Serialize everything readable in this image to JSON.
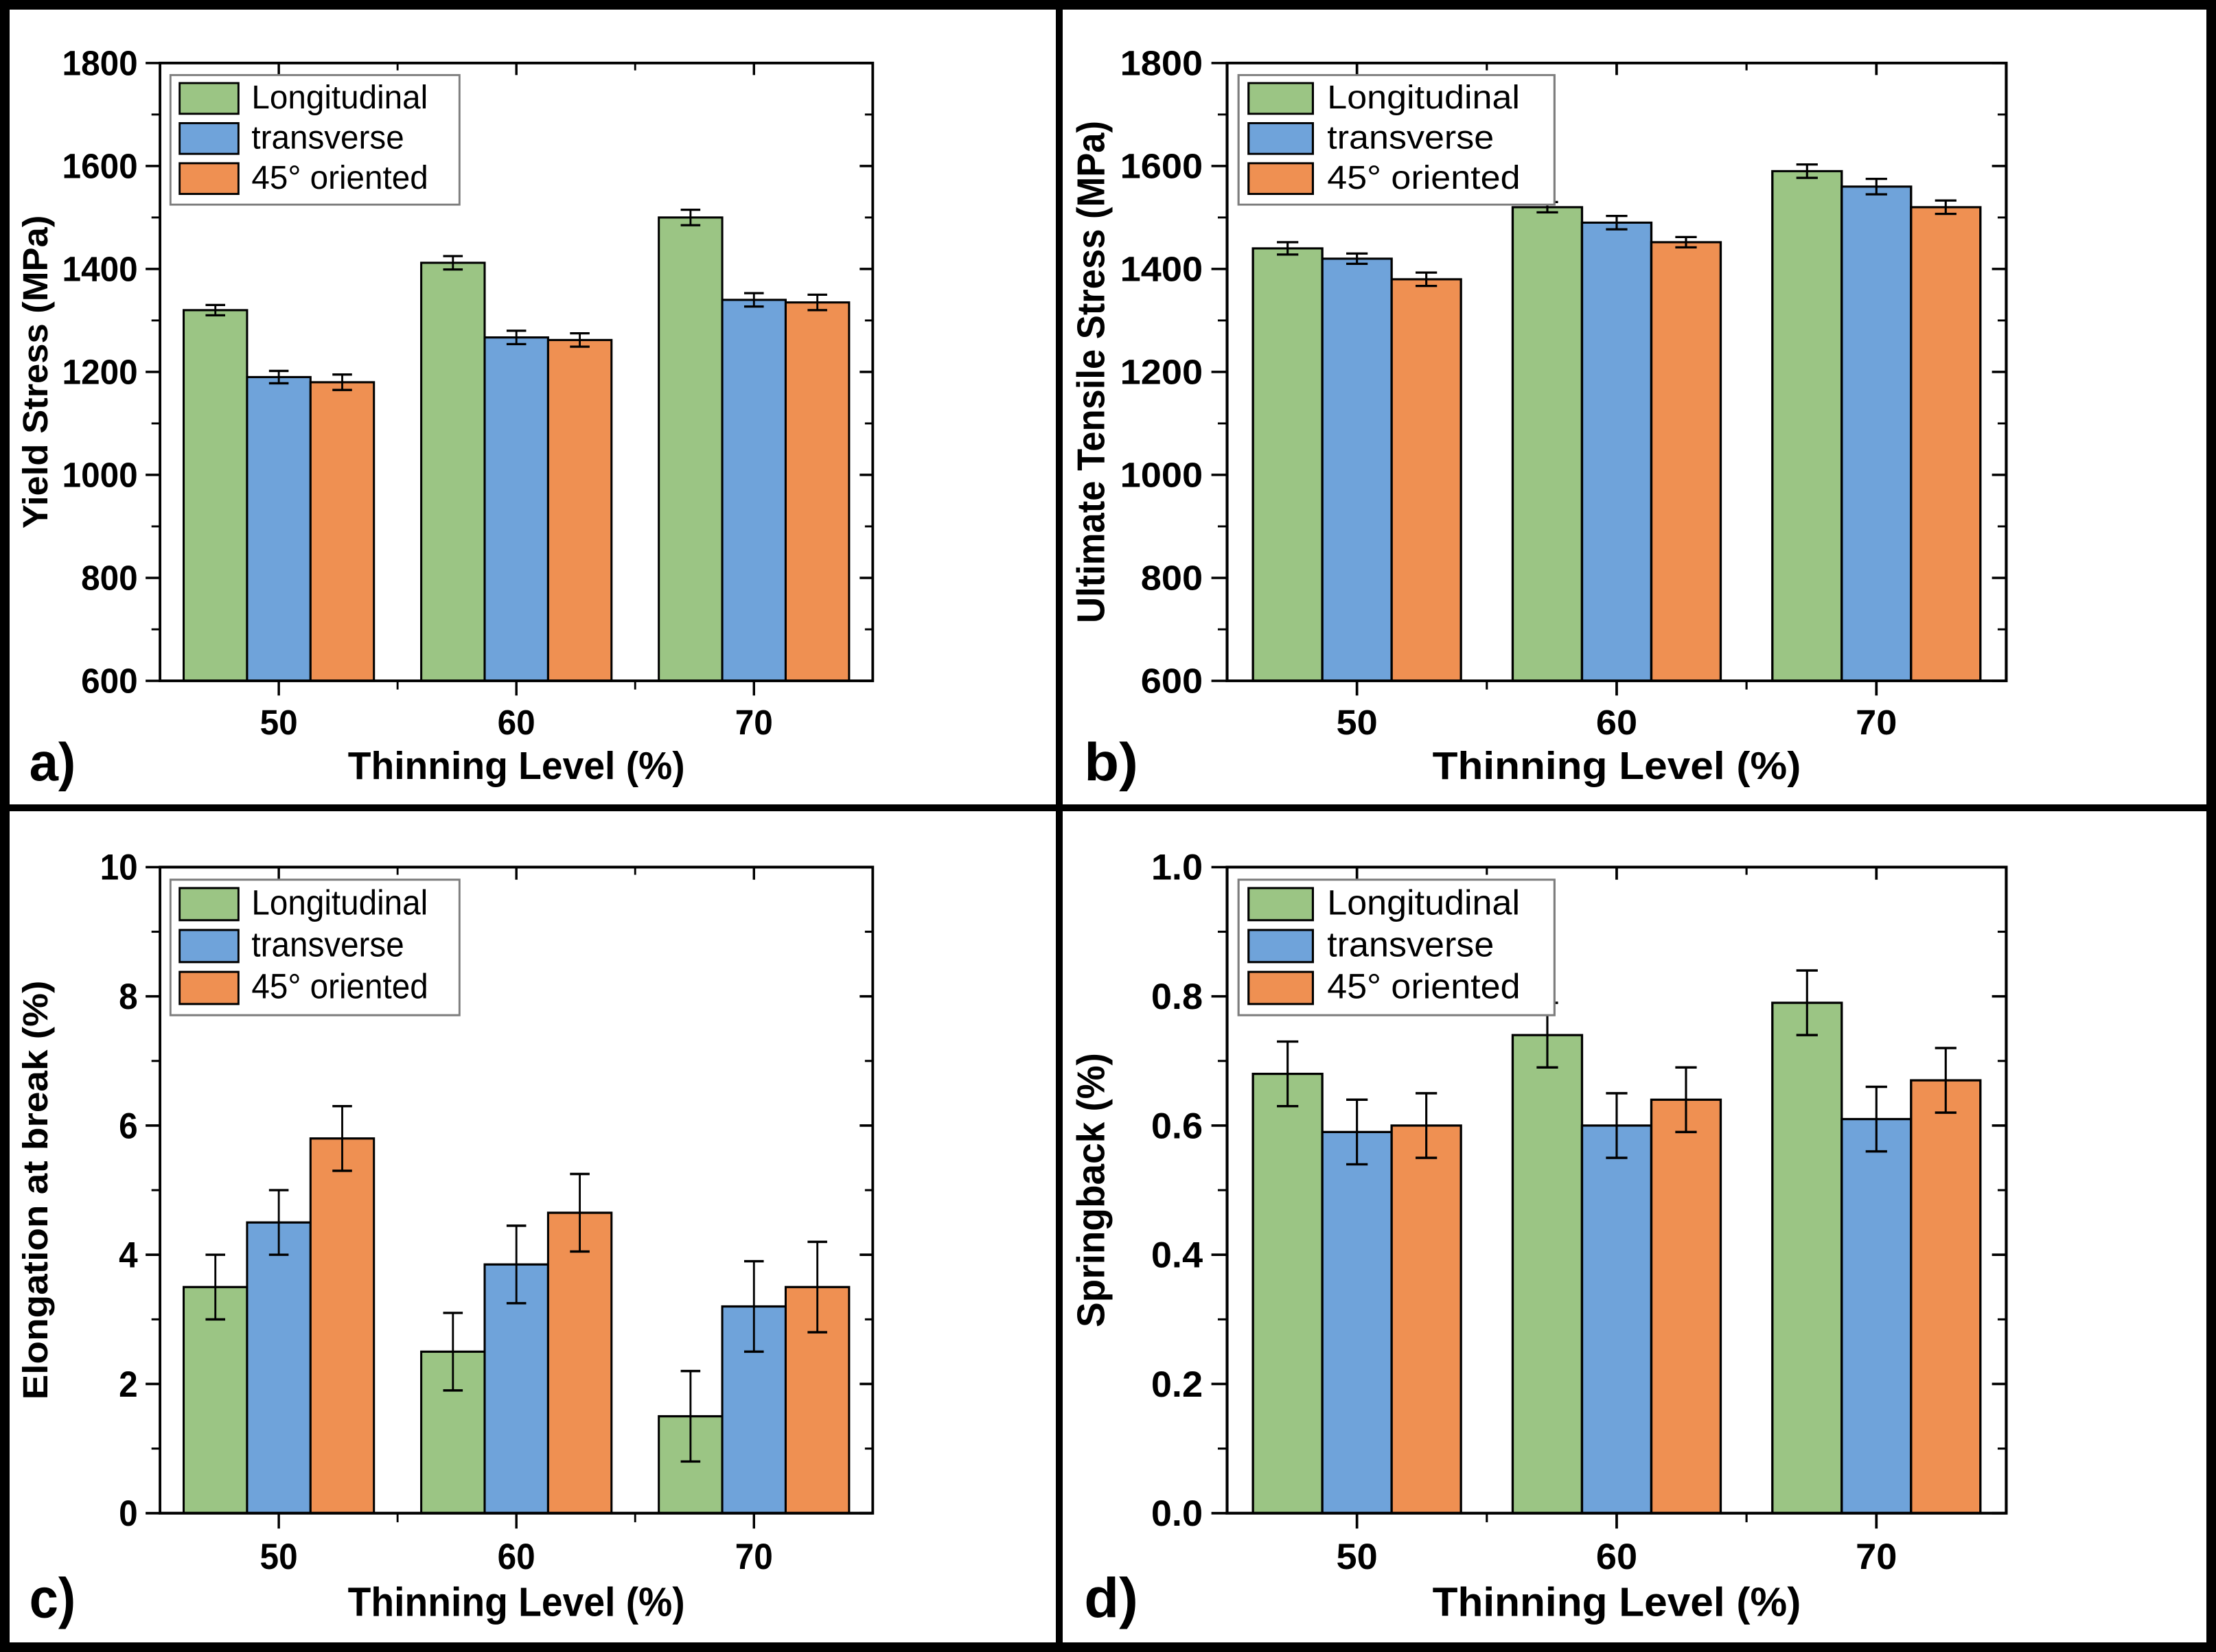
{
  "figure": {
    "background": "#ffffff",
    "border_color": "#000000",
    "series_colors": {
      "longitudinal": "#9bc584",
      "transverse": "#6fa3da",
      "oriented45": "#ef9052"
    },
    "panel_labels": [
      "a)",
      "b)",
      "c)",
      "d)"
    ]
  },
  "chart_data": [
    {
      "type": "bar",
      "panel_label": "a)",
      "title": "",
      "xlabel": "Thinning Level (%)",
      "ylabel": "Yield Stress (MPa)",
      "ylim": [
        600,
        1800
      ],
      "ytick_major": 200,
      "ytick_minor": 100,
      "ytick_decimals": 0,
      "categories": [
        "50",
        "60",
        "70"
      ],
      "grid": false,
      "legend_position": "top-left",
      "series": [
        {
          "name": "Longitudinal",
          "color": "#9bc584",
          "values": [
            1320,
            1412,
            1500
          ],
          "errors": [
            10,
            13,
            15
          ]
        },
        {
          "name": "transverse",
          "color": "#6fa3da",
          "values": [
            1190,
            1267,
            1340
          ],
          "errors": [
            12,
            13,
            13
          ]
        },
        {
          "name": "45° oriented",
          "color": "#ef9052",
          "values": [
            1180,
            1262,
            1335
          ],
          "errors": [
            15,
            13,
            15
          ]
        }
      ]
    },
    {
      "type": "bar",
      "panel_label": "b)",
      "title": "",
      "xlabel": "Thinning Level (%)",
      "ylabel": "Ultimate Tensile Stress (MPa)",
      "ylim": [
        600,
        1800
      ],
      "ytick_major": 200,
      "ytick_minor": 100,
      "ytick_decimals": 0,
      "categories": [
        "50",
        "60",
        "70"
      ],
      "grid": false,
      "legend_position": "top-left",
      "series": [
        {
          "name": "Longitudinal",
          "color": "#9bc584",
          "values": [
            1440,
            1520,
            1590
          ],
          "errors": [
            12,
            10,
            13
          ]
        },
        {
          "name": "transverse",
          "color": "#6fa3da",
          "values": [
            1420,
            1490,
            1560
          ],
          "errors": [
            10,
            13,
            15
          ]
        },
        {
          "name": "45° oriented",
          "color": "#ef9052",
          "values": [
            1380,
            1452,
            1520
          ],
          "errors": [
            13,
            10,
            13
          ]
        }
      ]
    },
    {
      "type": "bar",
      "panel_label": "c)",
      "title": "",
      "xlabel": "Thinning Level (%)",
      "ylabel": "Elongation at break (%)",
      "ylim": [
        0,
        10
      ],
      "ytick_major": 2,
      "ytick_minor": 1,
      "ytick_decimals": 0,
      "categories": [
        "50",
        "60",
        "70"
      ],
      "grid": false,
      "legend_position": "top-left",
      "series": [
        {
          "name": "Longitudinal",
          "color": "#9bc584",
          "values": [
            3.5,
            2.5,
            1.5
          ],
          "errors": [
            0.5,
            0.6,
            0.7
          ]
        },
        {
          "name": "transverse",
          "color": "#6fa3da",
          "values": [
            4.5,
            3.85,
            3.2
          ],
          "errors": [
            0.5,
            0.6,
            0.7
          ]
        },
        {
          "name": "45° oriented",
          "color": "#ef9052",
          "values": [
            5.8,
            4.65,
            3.5
          ],
          "errors": [
            0.5,
            0.6,
            0.7
          ]
        }
      ]
    },
    {
      "type": "bar",
      "panel_label": "d)",
      "title": "",
      "xlabel": "Thinning Level (%)",
      "ylabel": "Springback (%)",
      "ylim": [
        0,
        1
      ],
      "ytick_major": 0.2,
      "ytick_minor": 0.1,
      "ytick_decimals": 1,
      "categories": [
        "50",
        "60",
        "70"
      ],
      "grid": false,
      "legend_position": "top-left",
      "series": [
        {
          "name": "Longitudinal",
          "color": "#9bc584",
          "values": [
            0.68,
            0.74,
            0.79
          ],
          "errors": [
            0.05,
            0.05,
            0.05
          ]
        },
        {
          "name": "transverse",
          "color": "#6fa3da",
          "values": [
            0.59,
            0.6,
            0.61
          ],
          "errors": [
            0.05,
            0.05,
            0.05
          ]
        },
        {
          "name": "45° oriented",
          "color": "#ef9052",
          "values": [
            0.6,
            0.64,
            0.67
          ],
          "errors": [
            0.05,
            0.05,
            0.05
          ]
        }
      ]
    }
  ]
}
